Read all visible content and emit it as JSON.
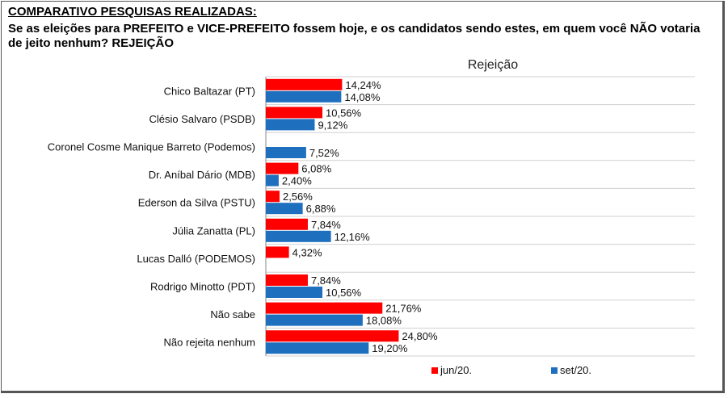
{
  "header": {
    "heading": "COMPARATIVO PESQUISAS REALIZADAS:",
    "question": "Se as eleições para PREFEITO e VICE-PREFEITO fossem hoje, e os candidatos sendo estes, em quem você NÃO votaria de jeito nenhum? REJEIÇÃO"
  },
  "colors": {
    "jun": "#ff0000",
    "set": "#1f6fbf",
    "grid": "#d0d0d0"
  },
  "chart_data": {
    "type": "bar",
    "orientation": "horizontal",
    "title": "Rejeição",
    "categories": [
      "Chico Baltazar (PT)",
      "Clésio Salvaro (PSDB)",
      "Coronel Cosme Manique Barreto (Podemos)",
      "Dr. Aníbal Dário (MDB)",
      "Ederson da Silva (PSTU)",
      "Júlia Zanatta (PL)",
      "Lucas Dalló (PODEMOS)",
      "Rodrigo Minotto (PDT)",
      "Não sabe",
      "Não rejeita nenhum"
    ],
    "series": [
      {
        "name": "jun/20.",
        "values": [
          14.24,
          10.56,
          null,
          6.08,
          2.56,
          7.84,
          4.32,
          7.84,
          21.76,
          24.8
        ],
        "labels": [
          "14,24%",
          "10,56%",
          "",
          "6,08%",
          "2,56%",
          "7,84%",
          "4,32%",
          "7,84%",
          "21,76%",
          "24,80%"
        ]
      },
      {
        "name": "set/20.",
        "values": [
          14.08,
          9.12,
          7.52,
          2.4,
          6.88,
          12.16,
          null,
          10.56,
          18.08,
          19.2
        ],
        "labels": [
          "14,08%",
          "9,12%",
          "7,52%",
          "2,40%",
          "6,88%",
          "12,16%",
          "",
          "10,56%",
          "18,08%",
          "19,20%"
        ]
      }
    ],
    "legend_position": "bottom-right",
    "grid": true
  },
  "legend": {
    "jun": "jun/20.",
    "set": "set/20."
  }
}
